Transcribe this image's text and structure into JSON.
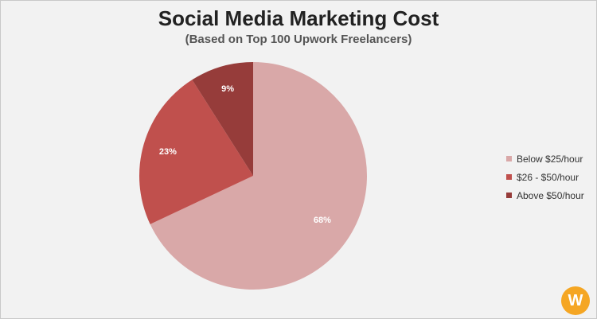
{
  "chart_data": {
    "type": "pie",
    "title": "Social Media Marketing Cost",
    "subtitle": "(Based on Top 100 Upwork Freelancers)",
    "categories": [
      "Below $25/hour",
      "$26 - $50/hour",
      "Above $50/hour"
    ],
    "values": [
      68,
      23,
      9
    ],
    "value_labels": [
      "68%",
      "23%",
      "9%"
    ],
    "colors": [
      "#d9a8a8",
      "#c0504d",
      "#963c3a"
    ],
    "legend_position": "right",
    "start_angle": "12 o'clock, clockwise"
  },
  "logo": {
    "text": "W",
    "color": "#f5a623"
  }
}
